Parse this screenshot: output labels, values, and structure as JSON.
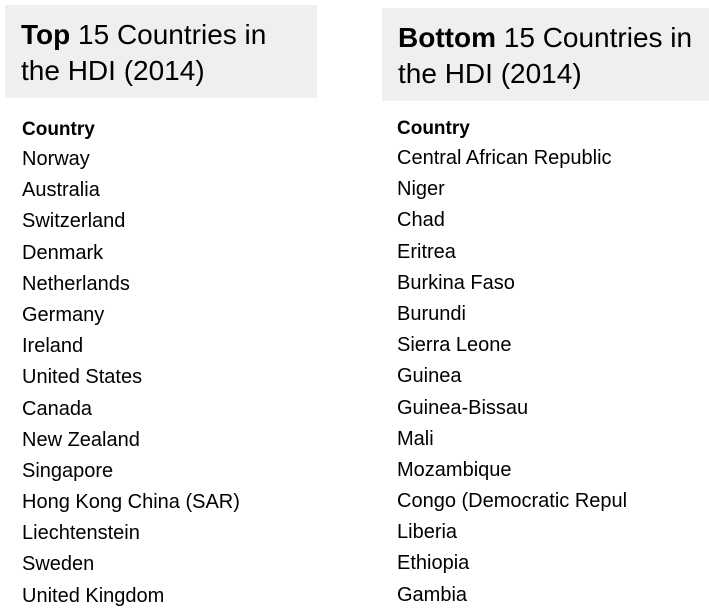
{
  "top": {
    "title_bold": "Top",
    "title_rest": " 15 Countries in the HDI (2014)",
    "column_header": "Country",
    "countries": [
      "Norway",
      "Australia",
      "Switzerland",
      "Denmark",
      "Netherlands",
      "Germany",
      "Ireland",
      "United States",
      "Canada",
      "New Zealand",
      "Singapore",
      "Hong Kong China (SAR)",
      "Liechtenstein",
      "Sweden",
      "United Kingdom"
    ]
  },
  "bottom": {
    "title_bold": "Bottom",
    "title_rest": " 15 Countries in the HDI (2014)",
    "column_header": "Country",
    "countries": [
      "Central African Republic",
      "Niger",
      "Chad",
      "Eritrea",
      "Burkina Faso",
      "Burundi",
      "Sierra Leone",
      "Guinea",
      "Guinea-Bissau",
      "Mali",
      "Mozambique",
      "Congo (Democratic Repul",
      "Liberia",
      "Ethiopia",
      "Gambia"
    ]
  }
}
